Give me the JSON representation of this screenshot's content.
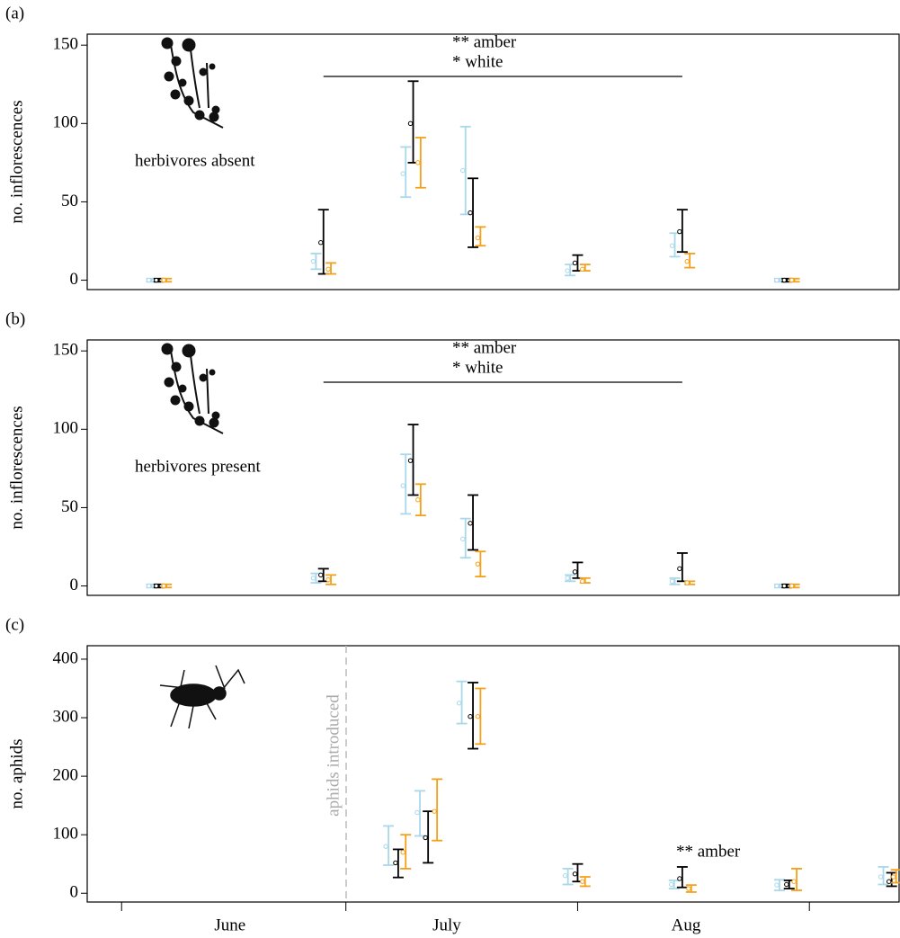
{
  "chart_data": [
    {
      "type": "errorbar",
      "panel_label": "(a)",
      "ylabel": "no. inflorescences",
      "annotations": [
        "** amber",
        "* white",
        "herbivores absent"
      ],
      "xlim": [
        -4.6,
        104
      ],
      "ylim": [
        -6,
        157
      ],
      "yticks": [
        0,
        50,
        100,
        150
      ],
      "series": [
        {
          "color": "#a8d8ea",
          "x": [
            4,
            26,
            38,
            46,
            60,
            74,
            88
          ],
          "values": [
            0,
            12,
            68,
            70,
            6,
            22,
            0
          ],
          "lower": [
            -1,
            7,
            53,
            42,
            3,
            15,
            -1
          ],
          "upper": [
            1,
            17,
            85,
            98,
            10,
            30,
            1
          ]
        },
        {
          "color": "#000000",
          "x": [
            5,
            27,
            39,
            47,
            61,
            75,
            89
          ],
          "values": [
            0,
            24,
            100,
            43,
            11,
            31,
            0
          ],
          "lower": [
            -1,
            4,
            75,
            21,
            6,
            18,
            -1
          ],
          "upper": [
            1,
            45,
            127,
            65,
            16,
            45,
            1
          ]
        },
        {
          "color": "#f5a01a",
          "x": [
            6,
            28,
            40,
            48,
            62,
            76,
            90
          ],
          "values": [
            0,
            7,
            75,
            27,
            7,
            12,
            0
          ],
          "lower": [
            -1,
            4,
            59,
            22,
            6,
            8,
            -1
          ],
          "upper": [
            1,
            11,
            91,
            34,
            10,
            17,
            1
          ]
        }
      ]
    },
    {
      "type": "errorbar",
      "panel_label": "(b)",
      "ylabel": "no. inflorescences",
      "annotations": [
        "** amber",
        "* white",
        "herbivores present"
      ],
      "xlim": [
        -4.6,
        104
      ],
      "ylim": [
        -6,
        157
      ],
      "yticks": [
        0,
        50,
        100,
        150
      ],
      "series": [
        {
          "color": "#a8d8ea",
          "x": [
            4,
            26,
            38,
            46,
            60,
            74,
            88
          ],
          "values": [
            0,
            5,
            64,
            30,
            5,
            3,
            0
          ],
          "lower": [
            -1,
            2,
            46,
            18,
            3,
            1,
            -1
          ],
          "upper": [
            1,
            8,
            84,
            43,
            7,
            5,
            1
          ]
        },
        {
          "color": "#000000",
          "x": [
            5,
            27,
            39,
            47,
            61,
            75,
            89
          ],
          "values": [
            0,
            7,
            80,
            40,
            9,
            11,
            0
          ],
          "lower": [
            -1,
            3,
            58,
            23,
            5,
            3,
            -1
          ],
          "upper": [
            1,
            11,
            103,
            58,
            15,
            21,
            1
          ]
        },
        {
          "color": "#f5a01a",
          "x": [
            6,
            28,
            40,
            48,
            62,
            76,
            90
          ],
          "values": [
            0,
            4,
            55,
            14,
            3,
            2,
            0
          ],
          "lower": [
            -1,
            1,
            45,
            6,
            2,
            1,
            -1
          ],
          "upper": [
            1,
            7,
            65,
            22,
            5,
            3,
            1
          ]
        }
      ]
    },
    {
      "type": "errorbar",
      "panel_label": "(c)",
      "ylabel": "no. aphids",
      "annotations": [
        "** amber",
        "aphids introduced"
      ],
      "xlim": [
        -4.6,
        104
      ],
      "ylim": [
        -15,
        423
      ],
      "yticks": [
        0,
        100,
        200,
        300,
        400
      ],
      "xticks": [
        0,
        30,
        61,
        92
      ],
      "xlabels": [
        {
          "value": 14.5,
          "label": "June"
        },
        {
          "value": 43.5,
          "label": "July"
        },
        {
          "value": 75.5,
          "label": "Aug"
        }
      ],
      "series": [
        {
          "color": "#a8d8ea",
          "x": [
            35.7,
            39.9,
            45.5,
            59.7,
            73.9,
            88,
            101.9
          ],
          "values": [
            80,
            138,
            325,
            30,
            15,
            14,
            28
          ],
          "lower": [
            48,
            98,
            290,
            15,
            8,
            5,
            15
          ],
          "upper": [
            115,
            175,
            362,
            42,
            22,
            23,
            45
          ]
        },
        {
          "color": "#000000",
          "x": [
            37,
            41,
            47,
            61,
            75,
            89.3,
            103
          ],
          "values": [
            52,
            95,
            302,
            33,
            25,
            15,
            20
          ],
          "lower": [
            27,
            52,
            247,
            20,
            10,
            8,
            12
          ],
          "upper": [
            75,
            140,
            360,
            50,
            45,
            22,
            35
          ]
        },
        {
          "color": "#f5a01a",
          "x": [
            38,
            42.2,
            48,
            62,
            76.2,
            90.3,
            103.6
          ],
          "values": [
            70,
            140,
            302,
            20,
            8,
            20,
            28
          ],
          "lower": [
            42,
            90,
            255,
            12,
            2,
            5,
            18
          ],
          "upper": [
            100,
            195,
            350,
            28,
            14,
            42,
            40
          ]
        }
      ]
    }
  ]
}
